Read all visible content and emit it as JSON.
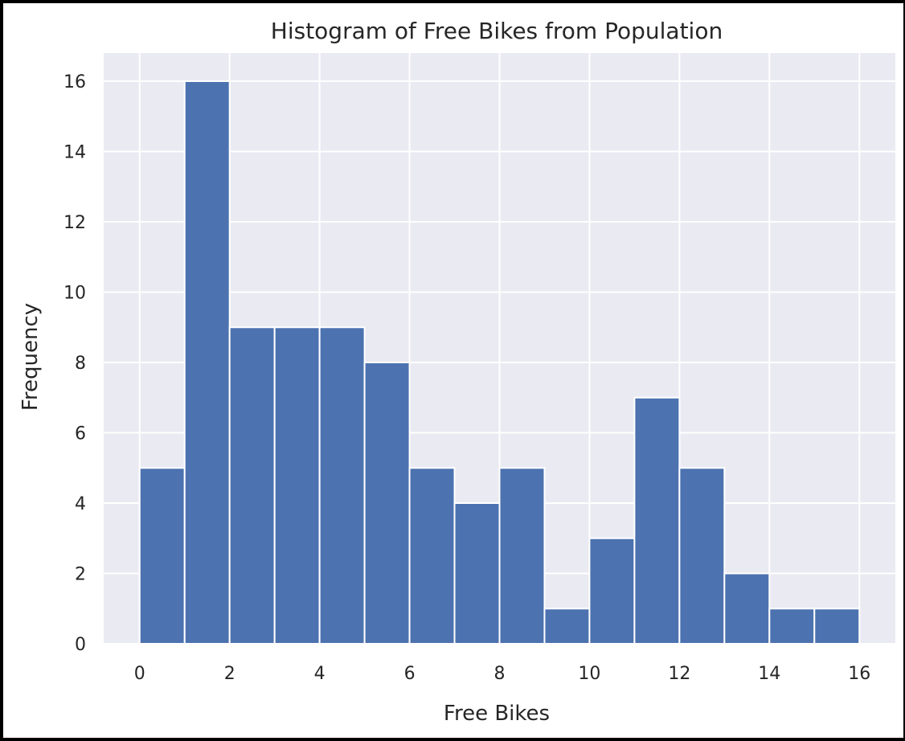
{
  "chart_data": {
    "type": "bar",
    "title": "Histogram of Free Bikes from Population",
    "xlabel": "Free Bikes",
    "ylabel": "Frequency",
    "bin_edges": [
      0,
      1,
      2,
      3,
      4,
      5,
      6,
      7,
      8,
      9,
      10,
      11,
      12,
      13,
      14,
      15,
      16
    ],
    "values": [
      5,
      16,
      9,
      9,
      9,
      8,
      5,
      4,
      5,
      1,
      3,
      7,
      5,
      2,
      1,
      1
    ],
    "xlim": [
      -0.8,
      16.8
    ],
    "ylim": [
      0,
      16.8
    ],
    "xticks": [
      "0",
      "2",
      "4",
      "6",
      "8",
      "10",
      "12",
      "14",
      "16"
    ],
    "yticks": [
      "0",
      "2",
      "4",
      "6",
      "8",
      "10",
      "12",
      "14",
      "16"
    ],
    "grid": true,
    "colors": {
      "bar": "#4c72b0",
      "plot_background": "#eaeaf2",
      "grid": "#ffffff"
    }
  }
}
